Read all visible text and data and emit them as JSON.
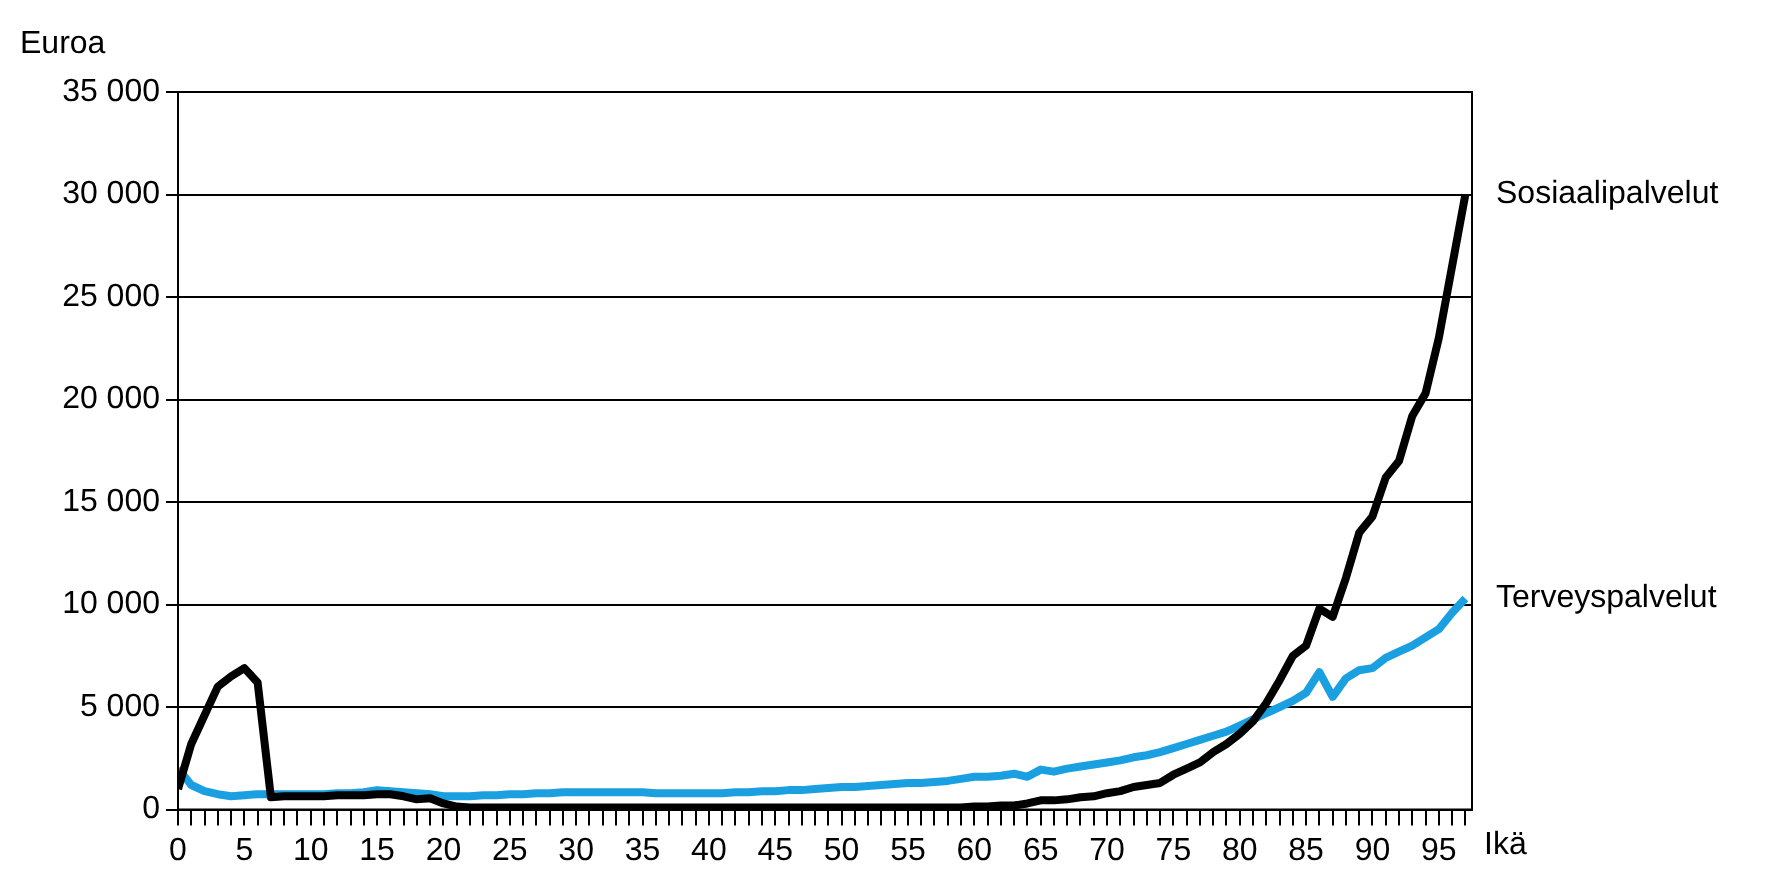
{
  "chart_data": {
    "type": "line",
    "ylabel": "Euroa",
    "xlabel": "Ikä",
    "x": [
      0,
      1,
      2,
      3,
      4,
      5,
      6,
      7,
      8,
      9,
      10,
      11,
      12,
      13,
      14,
      15,
      16,
      17,
      18,
      19,
      20,
      21,
      22,
      23,
      24,
      25,
      26,
      27,
      28,
      29,
      30,
      31,
      32,
      33,
      34,
      35,
      36,
      37,
      38,
      39,
      40,
      41,
      42,
      43,
      44,
      45,
      46,
      47,
      48,
      49,
      50,
      51,
      52,
      53,
      54,
      55,
      56,
      57,
      58,
      59,
      60,
      61,
      62,
      63,
      64,
      65,
      66,
      67,
      68,
      69,
      70,
      71,
      72,
      73,
      74,
      75,
      76,
      77,
      78,
      79,
      80,
      81,
      82,
      83,
      84,
      85,
      86,
      87,
      88,
      89,
      90,
      91,
      92,
      93,
      94,
      95,
      96,
      97
    ],
    "series": [
      {
        "name": "Sosiaalipalvelut",
        "color": "#000000",
        "values": [
          1000,
          3200,
          4600,
          6000,
          6500,
          6900,
          6200,
          600,
          650,
          650,
          650,
          650,
          700,
          700,
          700,
          750,
          750,
          650,
          500,
          550,
          300,
          150,
          100,
          100,
          100,
          100,
          100,
          100,
          100,
          100,
          100,
          100,
          100,
          100,
          100,
          100,
          100,
          100,
          100,
          100,
          100,
          100,
          100,
          100,
          100,
          100,
          100,
          100,
          100,
          100,
          100,
          100,
          100,
          100,
          100,
          100,
          100,
          100,
          100,
          100,
          150,
          150,
          200,
          200,
          300,
          450,
          450,
          500,
          600,
          650,
          800,
          900,
          1100,
          1200,
          1300,
          1700,
          2000,
          2300,
          2800,
          3200,
          3700,
          4300,
          5200,
          6300,
          7500,
          8000,
          9800,
          9400,
          11300,
          13500,
          14300,
          16200,
          17000,
          19200,
          20300,
          23000,
          26500,
          30000
        ]
      },
      {
        "name": "Terveyspalvelut",
        "color": "#1a9fe0",
        "values": [
          2000,
          1200,
          900,
          750,
          650,
          700,
          750,
          750,
          750,
          750,
          750,
          750,
          800,
          800,
          850,
          950,
          900,
          850,
          800,
          750,
          650,
          650,
          650,
          700,
          700,
          750,
          750,
          800,
          800,
          850,
          850,
          850,
          850,
          850,
          850,
          850,
          800,
          800,
          800,
          800,
          800,
          800,
          850,
          850,
          900,
          900,
          950,
          950,
          1000,
          1050,
          1100,
          1100,
          1150,
          1200,
          1250,
          1300,
          1300,
          1350,
          1400,
          1500,
          1600,
          1600,
          1650,
          1750,
          1600,
          1950,
          1850,
          2000,
          2100,
          2200,
          2300,
          2400,
          2550,
          2650,
          2800,
          3000,
          3200,
          3400,
          3600,
          3800,
          4100,
          4400,
          4700,
          5000,
          5300,
          5700,
          6700,
          5500,
          6400,
          6800,
          6900,
          7400,
          7700,
          8000,
          8400,
          8800,
          9600,
          10300
        ]
      }
    ],
    "xlim": [
      0,
      97.5
    ],
    "xticks": [
      0,
      {
        "value": 1,
        "label": null
      },
      {
        "value": 2,
        "label": null
      },
      {
        "value": 3,
        "label": null
      },
      {
        "value": 4,
        "label": null
      },
      5,
      {
        "value": 6,
        "label": null
      },
      {
        "value": 7,
        "label": null
      },
      {
        "value": 8,
        "label": null
      },
      {
        "value": 9,
        "label": null
      },
      10,
      {
        "value": 11,
        "label": null
      },
      {
        "value": 12,
        "label": null
      },
      {
        "value": 13,
        "label": null
      },
      {
        "value": 14,
        "label": null
      },
      15,
      {
        "value": 16,
        "label": null
      },
      {
        "value": 17,
        "label": null
      },
      {
        "value": 18,
        "label": null
      },
      {
        "value": 19,
        "label": null
      },
      20,
      {
        "value": 21,
        "label": null
      },
      {
        "value": 22,
        "label": null
      },
      {
        "value": 23,
        "label": null
      },
      {
        "value": 24,
        "label": null
      },
      25,
      {
        "value": 26,
        "label": null
      },
      {
        "value": 27,
        "label": null
      },
      {
        "value": 28,
        "label": null
      },
      {
        "value": 29,
        "label": null
      },
      30,
      {
        "value": 31,
        "label": null
      },
      {
        "value": 32,
        "label": null
      },
      {
        "value": 33,
        "label": null
      },
      {
        "value": 34,
        "label": null
      },
      35,
      {
        "value": 36,
        "label": null
      },
      {
        "value": 37,
        "label": null
      },
      {
        "value": 38,
        "label": null
      },
      {
        "value": 39,
        "label": null
      },
      40,
      {
        "value": 41,
        "label": null
      },
      {
        "value": 42,
        "label": null
      },
      {
        "value": 43,
        "label": null
      },
      {
        "value": 44,
        "label": null
      },
      45,
      {
        "value": 46,
        "label": null
      },
      {
        "value": 47,
        "label": null
      },
      {
        "value": 48,
        "label": null
      },
      {
        "value": 49,
        "label": null
      },
      50,
      {
        "value": 51,
        "label": null
      },
      {
        "value": 52,
        "label": null
      },
      {
        "value": 53,
        "label": null
      },
      {
        "value": 54,
        "label": null
      },
      55,
      {
        "value": 56,
        "label": null
      },
      {
        "value": 57,
        "label": null
      },
      {
        "value": 58,
        "label": null
      },
      {
        "value": 59,
        "label": null
      },
      60,
      {
        "value": 61,
        "label": null
      },
      {
        "value": 62,
        "label": null
      },
      {
        "value": 63,
        "label": null
      },
      {
        "value": 64,
        "label": null
      },
      65,
      {
        "value": 66,
        "label": null
      },
      {
        "value": 67,
        "label": null
      },
      {
        "value": 68,
        "label": null
      },
      {
        "value": 69,
        "label": null
      },
      70,
      {
        "value": 71,
        "label": null
      },
      {
        "value": 72,
        "label": null
      },
      {
        "value": 73,
        "label": null
      },
      {
        "value": 74,
        "label": null
      },
      75,
      {
        "value": 76,
        "label": null
      },
      {
        "value": 77,
        "label": null
      },
      {
        "value": 78,
        "label": null
      },
      {
        "value": 79,
        "label": null
      },
      80,
      {
        "value": 81,
        "label": null
      },
      {
        "value": 82,
        "label": null
      },
      {
        "value": 83,
        "label": null
      },
      {
        "value": 84,
        "label": null
      },
      85,
      {
        "value": 86,
        "label": null
      },
      {
        "value": 87,
        "label": null
      },
      {
        "value": 88,
        "label": null
      },
      {
        "value": 89,
        "label": null
      },
      90,
      {
        "value": 91,
        "label": null
      },
      {
        "value": 92,
        "label": null
      },
      {
        "value": 93,
        "label": null
      },
      {
        "value": 94,
        "label": null
      },
      95,
      {
        "value": 96,
        "label": null
      },
      {
        "value": 97,
        "label": null
      }
    ],
    "ylim": [
      0,
      35000
    ],
    "yticks": [
      0,
      {
        "value": 5000,
        "label": "5 000"
      },
      {
        "value": 10000,
        "label": "10 000"
      },
      {
        "value": 15000,
        "label": "15 000"
      },
      {
        "value": 20000,
        "label": "20 000"
      },
      {
        "value": 25000,
        "label": "25 000"
      },
      {
        "value": 30000,
        "label": "30 000"
      },
      {
        "value": 35000,
        "label": "35 000"
      }
    ],
    "grid": "y",
    "legend": false,
    "marker": "none",
    "line_style": "solid"
  }
}
